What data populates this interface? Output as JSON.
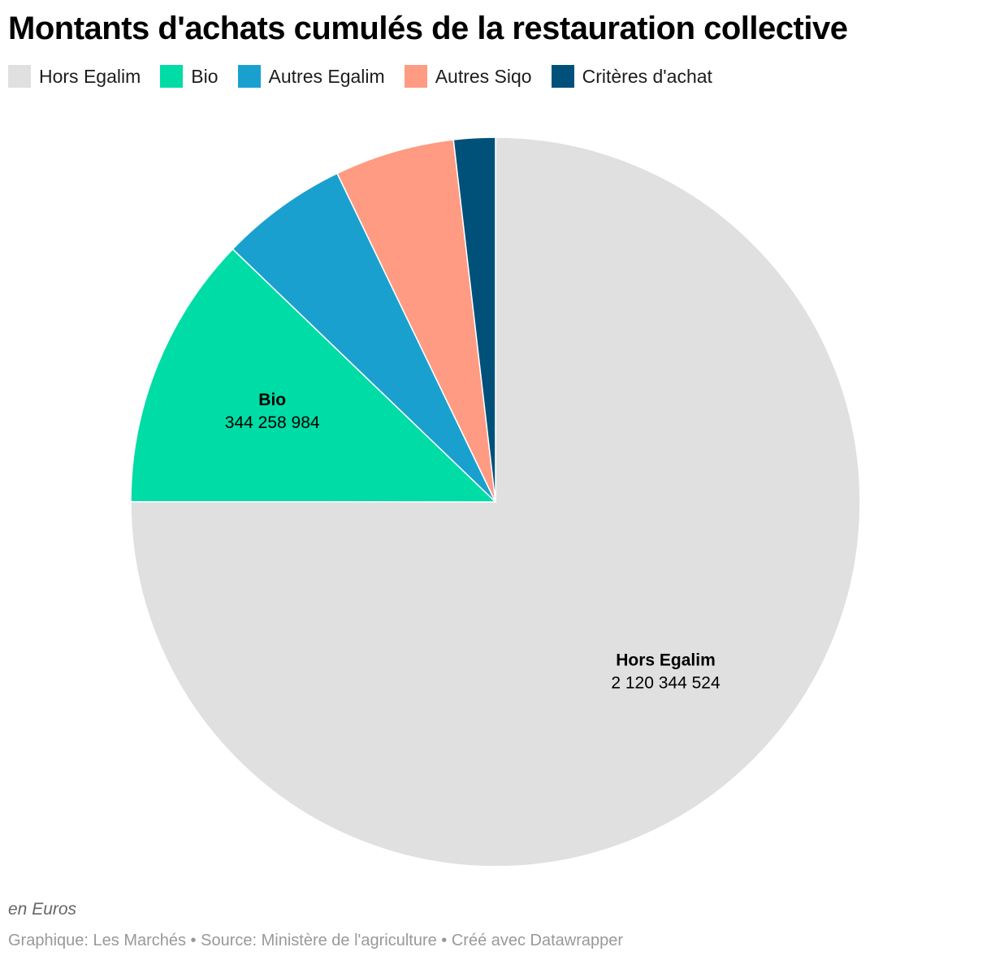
{
  "title": "Montants d'achats cumulés de la restauration collective",
  "note": "en Euros",
  "footer": "Graphique: Les Marchés • Source: Ministère de l'agriculture • Créé avec Datawrapper",
  "legend": [
    {
      "label": "Hors Egalim",
      "color": "#e0e0e0"
    },
    {
      "label": "Bio",
      "color": "#00dca6"
    },
    {
      "label": "Autres Egalim",
      "color": "#1aa0ce"
    },
    {
      "label": "Autres Siqo",
      "color": "#ff9b82"
    },
    {
      "label": "Critères d'achat",
      "color": "#00517a"
    }
  ],
  "chart_data": {
    "type": "pie",
    "title": "Montants d'achats cumulés de la restauration collective",
    "unit": "en Euros",
    "start_angle": "12 o'clock",
    "direction": "clockwise",
    "legend_position": "top-left",
    "slices": [
      {
        "name": "Hors Egalim",
        "value": 2120344524,
        "value_label": "2 120 344 524",
        "color": "#e0e0e0",
        "labeled": true
      },
      {
        "name": "Bio",
        "value": 344258984,
        "value_label": "344 258 984",
        "color": "#00dca6",
        "labeled": true
      },
      {
        "name": "Autres Egalim",
        "value": 160000000,
        "color": "#1aa0ce",
        "labeled": false
      },
      {
        "name": "Autres Siqo",
        "value": 150000000,
        "color": "#ff9b82",
        "labeled": false
      },
      {
        "name": "Critères d'achat",
        "value": 52000000,
        "color": "#00517a",
        "labeled": false
      }
    ]
  }
}
